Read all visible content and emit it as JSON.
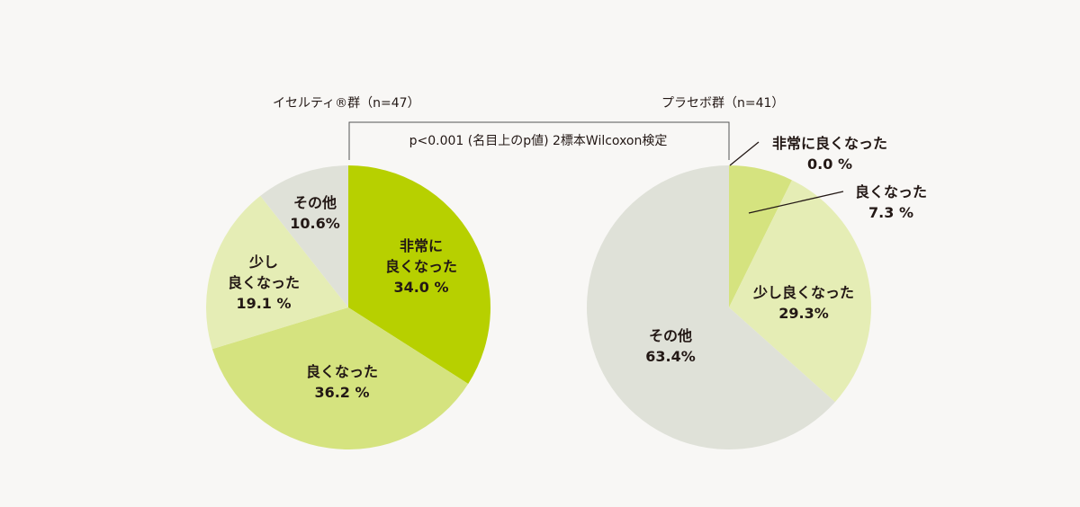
{
  "chart_data": [
    {
      "type": "pie",
      "title": "イセルティ®群（n=47）",
      "slices": [
        {
          "label": "非常に良くなった",
          "value": 34.0,
          "display": "34.0 %",
          "color": "#b7d000"
        },
        {
          "label": "良くなった",
          "value": 36.2,
          "display": "36.2 %",
          "color": "#d5e37f"
        },
        {
          "label": "少し良くなった",
          "value": 19.1,
          "display": "19.1 %",
          "color": "#e5edb5"
        },
        {
          "label": "その他",
          "value": 10.6,
          "display": "10.6%",
          "color": "#dfe1d8"
        }
      ]
    },
    {
      "type": "pie",
      "title": "プラセボ群（n=41）",
      "slices": [
        {
          "label": "非常に良くなった",
          "value": 0.0,
          "display": "0.0 %",
          "color": "#b7d000"
        },
        {
          "label": "良くなった",
          "value": 7.3,
          "display": "7.3 %",
          "color": "#d5e37f"
        },
        {
          "label": "少し良くなった",
          "value": 29.3,
          "display": "29.3%",
          "color": "#e5edb5"
        },
        {
          "label": "その他",
          "value": 63.4,
          "display": "63.4%",
          "color": "#dfe1d8"
        }
      ]
    }
  ],
  "comparison": {
    "text": "p<0.001 (名目上のp値) 2標本Wilcoxon検定"
  },
  "left_labels": {
    "l0a": "非常に",
    "l0b": "良くなった",
    "l2a": "少し",
    "l2b": "良くなった"
  }
}
